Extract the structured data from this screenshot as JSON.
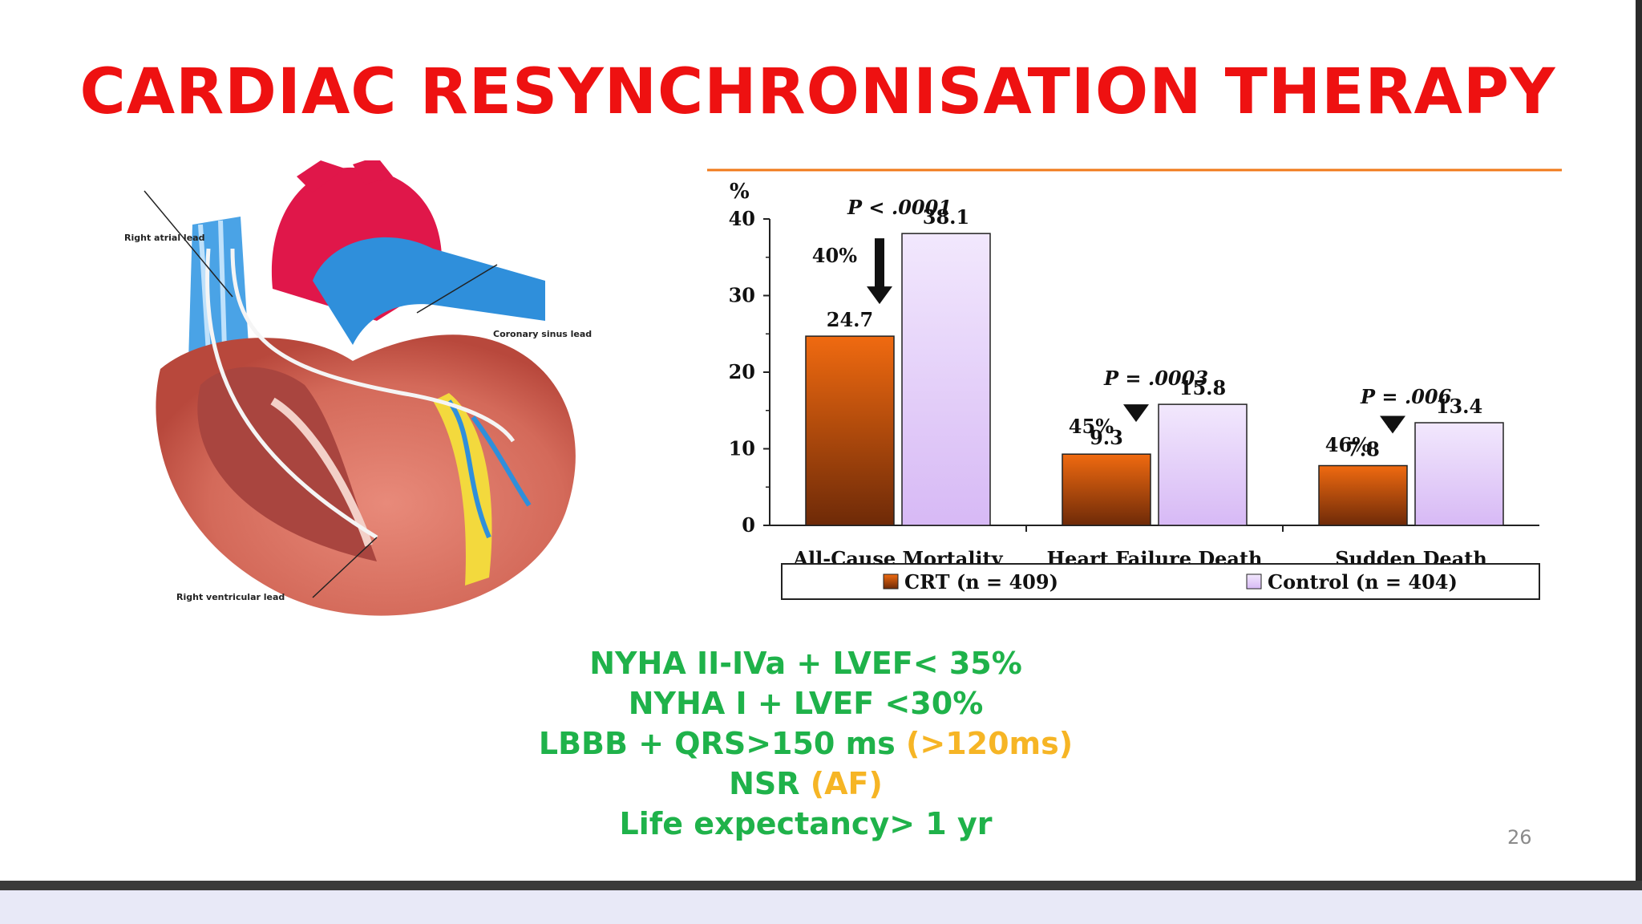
{
  "slide": {
    "title": "CARDIAC RESYNCHRONISATION THERAPY",
    "page_number": "26",
    "criteria": [
      {
        "main": "NYHA II-IVa + LVEF< 35%",
        "alt": ""
      },
      {
        "main": "NYHA I + LVEF <30%",
        "alt": ""
      },
      {
        "main": "LBBB + QRS>150 ms ",
        "alt": "(>120ms)"
      },
      {
        "main": "NSR ",
        "alt": "(AF)"
      },
      {
        "main": "Life expectancy> 1 yr",
        "alt": ""
      }
    ],
    "colors": {
      "title": "#ee1111",
      "criteria": "#1fb24a",
      "criteria_alt": "#f6b525"
    }
  },
  "heart_labels": {
    "right_atrial": "Right atrial lead",
    "coronary_sinus": "Coronary sinus lead",
    "right_ventricular": "Right ventricular lead"
  },
  "chart_data": {
    "type": "bar",
    "ylabel": "%",
    "ylim": [
      0,
      40
    ],
    "yticks": [
      "0",
      "10",
      "20",
      "30",
      "40"
    ],
    "categories": [
      "All-Cause Mortality",
      "Heart Failure Death",
      "Sudden Death"
    ],
    "series": [
      {
        "name": "CRT (n = 409)",
        "values": [
          24.7,
          9.3,
          7.8
        ],
        "value_labels": [
          "24.7",
          "9.3",
          "7.8"
        ],
        "color": "#f06a10"
      },
      {
        "name": "Control (n = 404)",
        "values": [
          38.1,
          15.8,
          13.4
        ],
        "value_labels": [
          "38.1",
          "15.8",
          "13.4"
        ],
        "color": "#d7b9f5"
      }
    ],
    "p_values": [
      "P < .0001",
      "P = .0003",
      "P = .006"
    ],
    "reductions": [
      "40%",
      "45%",
      "46%"
    ],
    "legend_position": "bottom",
    "grid": false
  }
}
